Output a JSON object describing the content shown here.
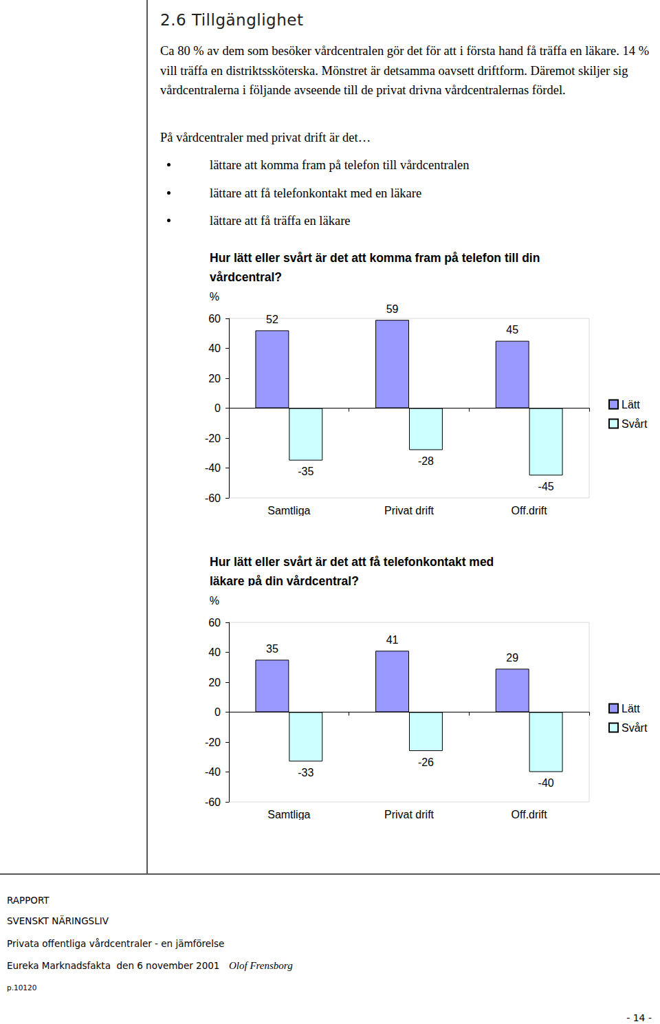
{
  "header": {
    "title": "2.6 Tillgänglighet"
  },
  "body": {
    "paragraphs": [
      "Ca 80 % av dem som besöker vårdcentralen gör det för att i första hand få träffa en läkare. 14 % vill träffa en distriktssköterska. Mönstret är detsamma oavsett driftform. Däremot skiljer sig vårdcentralerna i följande avseende till de privat drivna vårdcentralernas fördel.",
      "På vårdcentraler med privat drift är det…"
    ],
    "bullets": [
      "lättare att komma fram på telefon till vårdcentralen",
      "lättare att få telefonkontakt med en läkare",
      "lättare att få träffa en läkare"
    ]
  },
  "chart_data": [
    {
      "type": "bar",
      "title": "Hur lätt eller svårt är det att komma fram på telefon till din vårdcentral?",
      "y_label": "%",
      "categories": [
        "Samtliga",
        "Privat drift",
        "Off.drift"
      ],
      "series": [
        {
          "name": "Lätt",
          "color": "#9999ff",
          "values": [
            52,
            59,
            45
          ]
        },
        {
          "name": "Svårt",
          "color": "#ccffff",
          "values": [
            -35,
            -28,
            -45
          ]
        }
      ],
      "ylim": [
        -60,
        60
      ],
      "yticks": [
        -60,
        -40,
        -20,
        0,
        20,
        40,
        60
      ],
      "grid": false,
      "legend": "right",
      "data_labels": true
    },
    {
      "type": "bar",
      "title": "Hur lätt eller svårt är det att få telefonkontakt med läkare på din vårdcentral?",
      "y_label": "%",
      "categories": [
        "Samtliga",
        "Privat drift",
        "Off.drift"
      ],
      "series": [
        {
          "name": "Lätt",
          "color": "#9999ff",
          "values": [
            35,
            41,
            29
          ]
        },
        {
          "name": "Svårt",
          "color": "#ccffff",
          "values": [
            -33,
            -26,
            -40
          ]
        }
      ],
      "ylim": [
        -60,
        60
      ],
      "yticks": [
        -60,
        -40,
        -20,
        0,
        20,
        40,
        60
      ],
      "grid": false,
      "legend": "right",
      "data_labels": true
    }
  ],
  "footer": {
    "report": "RAPPORT",
    "organization": "SVENSKT NÄRINGSLIV",
    "publication": "Privata offentliga vårdcentraler - en jämförelse",
    "publisher": "Eureka Marknadsfakta  den 6 november 2001",
    "author": "Olof Frensborg",
    "code": "p.10120",
    "page": "- 14 -"
  }
}
